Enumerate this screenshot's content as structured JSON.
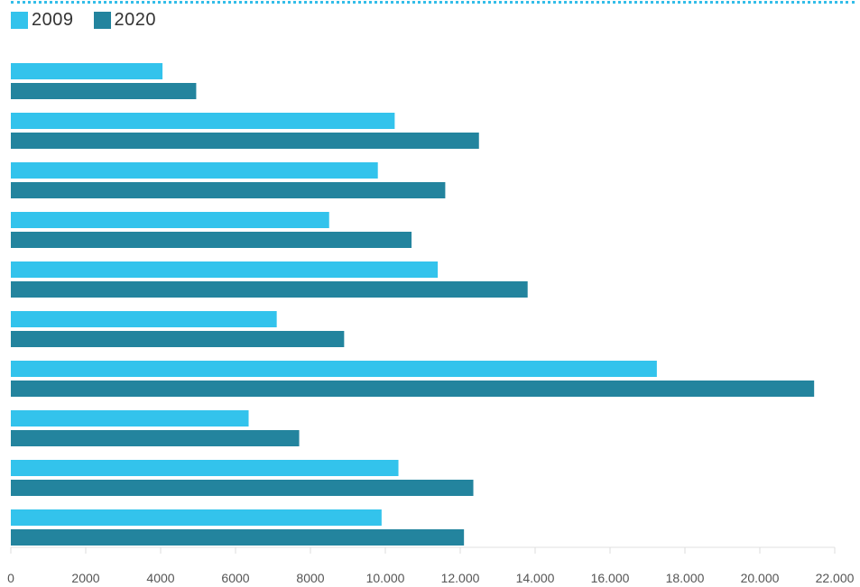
{
  "chart_data": {
    "type": "bar",
    "orientation": "horizontal",
    "title": "",
    "xlabel": "",
    "ylabel": "",
    "categories": [
      "",
      "",
      "",
      "",
      "",
      "",
      "",
      "",
      "",
      ""
    ],
    "series": [
      {
        "name": "2009",
        "color": "#33c3ec",
        "values": [
          4050,
          10250,
          9800,
          8500,
          11400,
          7100,
          17250,
          6350,
          10350,
          9900
        ]
      },
      {
        "name": "2020",
        "color": "#23849e",
        "values": [
          4950,
          12500,
          11600,
          10700,
          13800,
          8900,
          21450,
          7700,
          12350,
          12100
        ]
      }
    ],
    "xlim": [
      0,
      22000
    ],
    "xticks": [
      0,
      2000,
      4000,
      6000,
      8000,
      10000,
      12000,
      14000,
      16000,
      18000,
      20000,
      22000
    ],
    "xtick_labels": [
      "0",
      "2000",
      "4000",
      "6000",
      "8000",
      "10.000",
      "12.000",
      "14.000",
      "16.000",
      "18.000",
      "20.000",
      "22.000"
    ],
    "grid": false,
    "legend_position": "top-left"
  }
}
